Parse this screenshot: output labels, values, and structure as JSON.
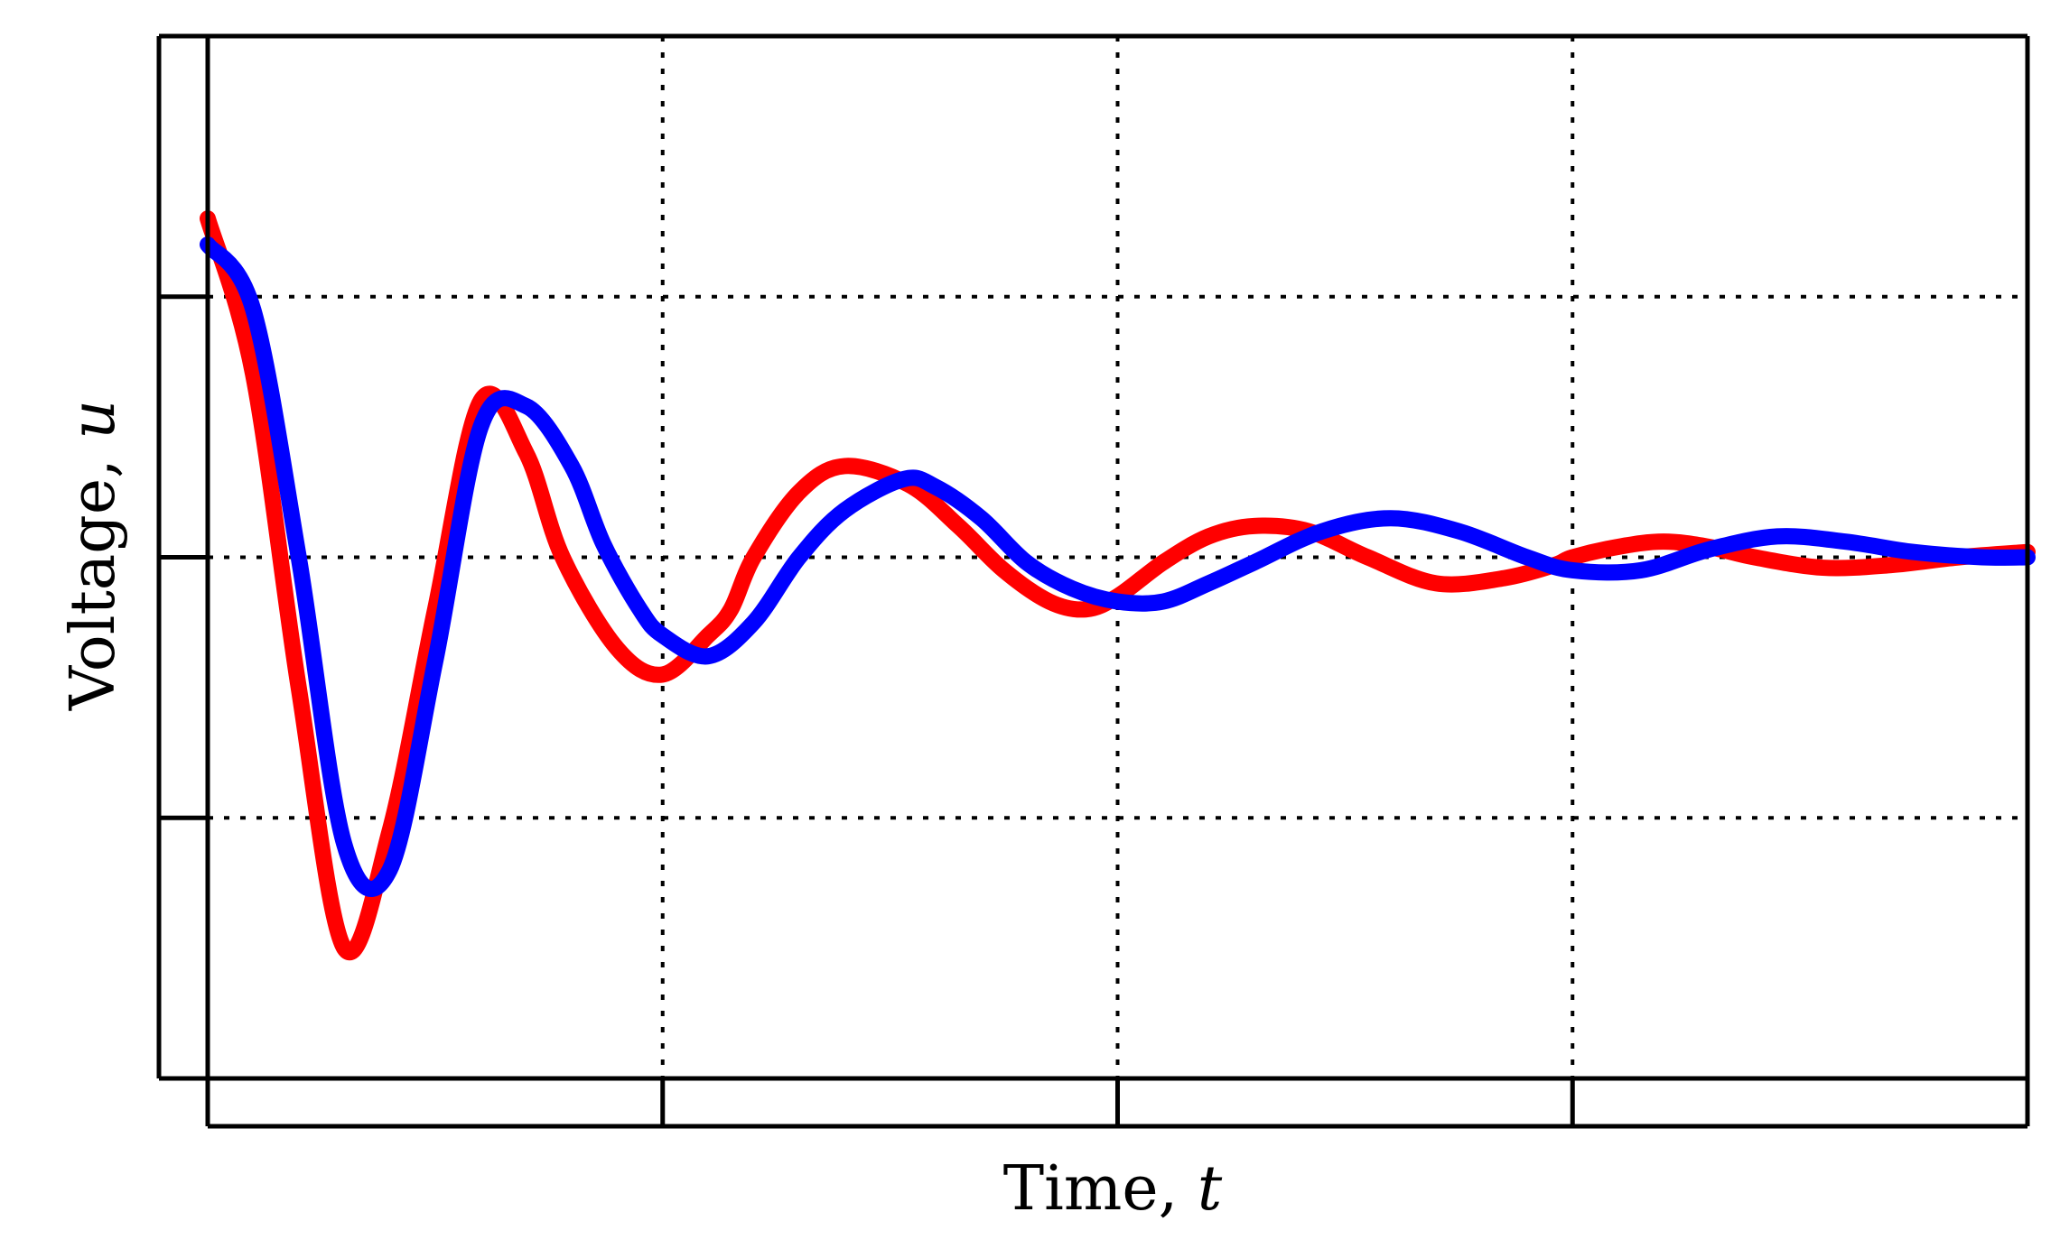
{
  "chart_data": {
    "type": "line",
    "title": "",
    "xlabel": {
      "text": "Time, ",
      "var": "t"
    },
    "ylabel": {
      "text": "Voltage, ",
      "var": "u"
    },
    "xlim": [
      0,
      4
    ],
    "ylim": [
      -2,
      2
    ],
    "xticks": [
      0,
      1,
      2,
      3,
      4
    ],
    "yticks": [
      -2,
      -1,
      0,
      1,
      2
    ],
    "tick_labels_shown": false,
    "grid": {
      "on": true,
      "style": "dotted",
      "color": "#000000"
    },
    "legend": "none",
    "series": [
      {
        "color": "#ff0000",
        "x": [
          0,
          0.1,
          0.2,
          0.3,
          0.4,
          0.5,
          0.6,
          0.7,
          0.78,
          0.9,
          1.0,
          1.1,
          1.15,
          1.2,
          1.3,
          1.4,
          1.54,
          1.65,
          1.75,
          1.85,
          1.93,
          2.0,
          2.1,
          2.2,
          2.3,
          2.42,
          2.55,
          2.7,
          2.85,
          2.96,
          3.0,
          3.1,
          3.2,
          3.3,
          3.4,
          3.55,
          3.7,
          3.85,
          4.0
        ],
        "y": [
          1.3,
          0.7,
          -0.5,
          -1.5,
          -1.05,
          -0.2,
          0.6,
          0.4,
          0.0,
          -0.35,
          -0.45,
          -0.3,
          -0.2,
          0.0,
          0.25,
          0.35,
          0.28,
          0.12,
          -0.05,
          -0.17,
          -0.2,
          -0.15,
          -0.02,
          0.08,
          0.12,
          0.1,
          0.0,
          -0.1,
          -0.08,
          -0.03,
          0.0,
          0.04,
          0.06,
          0.04,
          0.0,
          -0.04,
          -0.03,
          0.0,
          0.02
        ]
      },
      {
        "color": "#0000ff",
        "x": [
          0,
          0.1,
          0.2,
          0.3,
          0.4,
          0.5,
          0.6,
          0.7,
          0.8,
          0.87,
          0.95,
          1.0,
          1.1,
          1.2,
          1.3,
          1.4,
          1.53,
          1.6,
          1.7,
          1.8,
          1.9,
          2.0,
          2.1,
          2.2,
          2.3,
          2.45,
          2.6,
          2.75,
          2.9,
          3.0,
          3.15,
          3.3,
          3.45,
          3.6,
          3.75,
          3.9,
          4.0
        ],
        "y": [
          1.2,
          0.95,
          0.0,
          -1.1,
          -1.2,
          -0.4,
          0.5,
          0.58,
          0.35,
          0.05,
          -0.2,
          -0.3,
          -0.38,
          -0.25,
          0.0,
          0.18,
          0.3,
          0.27,
          0.15,
          -0.02,
          -0.12,
          -0.17,
          -0.17,
          -0.1,
          -0.02,
          0.1,
          0.15,
          0.1,
          0.0,
          -0.05,
          -0.05,
          0.03,
          0.08,
          0.06,
          0.02,
          0.0,
          0.0
        ]
      }
    ]
  }
}
